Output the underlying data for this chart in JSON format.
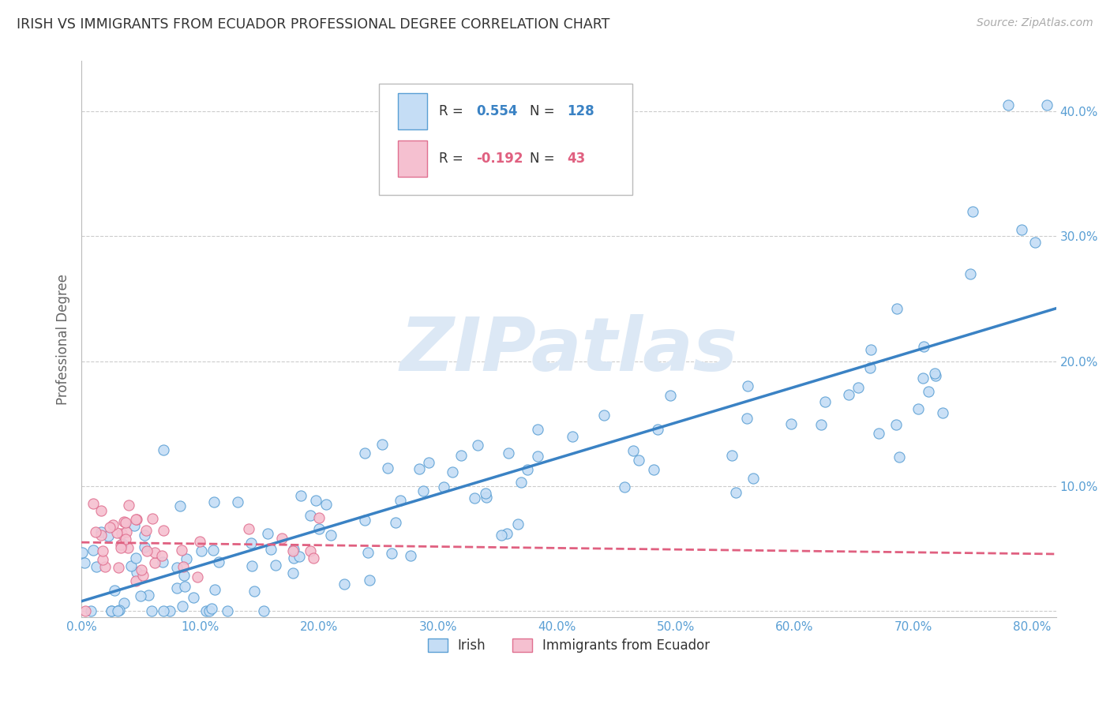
{
  "title": "IRISH VS IMMIGRANTS FROM ECUADOR PROFESSIONAL DEGREE CORRELATION CHART",
  "source": "Source: ZipAtlas.com",
  "ylabel": "Professional Degree",
  "xlim": [
    0.0,
    0.82
  ],
  "ylim": [
    -0.005,
    0.44
  ],
  "xticks": [
    0.0,
    0.1,
    0.2,
    0.3,
    0.4,
    0.5,
    0.6,
    0.7,
    0.8
  ],
  "xticklabels": [
    "0.0%",
    "10.0%",
    "20.0%",
    "30.0%",
    "40.0%",
    "50.0%",
    "60.0%",
    "70.0%",
    "80.0%"
  ],
  "yticks": [
    0.0,
    0.1,
    0.2,
    0.3,
    0.4
  ],
  "yticklabels": [
    "",
    "10.0%",
    "20.0%",
    "30.0%",
    "40.0%"
  ],
  "irish_r": 0.554,
  "irish_n": 128,
  "ecuador_r": -0.192,
  "ecuador_n": 43,
  "irish_color": "#c5ddf5",
  "irish_edge_color": "#5a9fd4",
  "ecuador_color": "#f5c0d0",
  "ecuador_edge_color": "#e07090",
  "irish_line_color": "#3a82c4",
  "ecuador_line_color": "#e06080",
  "watermark_text": "ZIPatlas",
  "watermark_color": "#dce8f5",
  "legend_irish_label": "Irish",
  "legend_ecuador_label": "Immigrants from Ecuador",
  "background_color": "#ffffff",
  "grid_color": "#cccccc",
  "title_color": "#333333",
  "axis_label_color": "#666666",
  "tick_label_color": "#5a9fd4",
  "legend_black_color": "#333333",
  "legend_blue_color": "#3a82c4",
  "legend_pink_color": "#e06080"
}
